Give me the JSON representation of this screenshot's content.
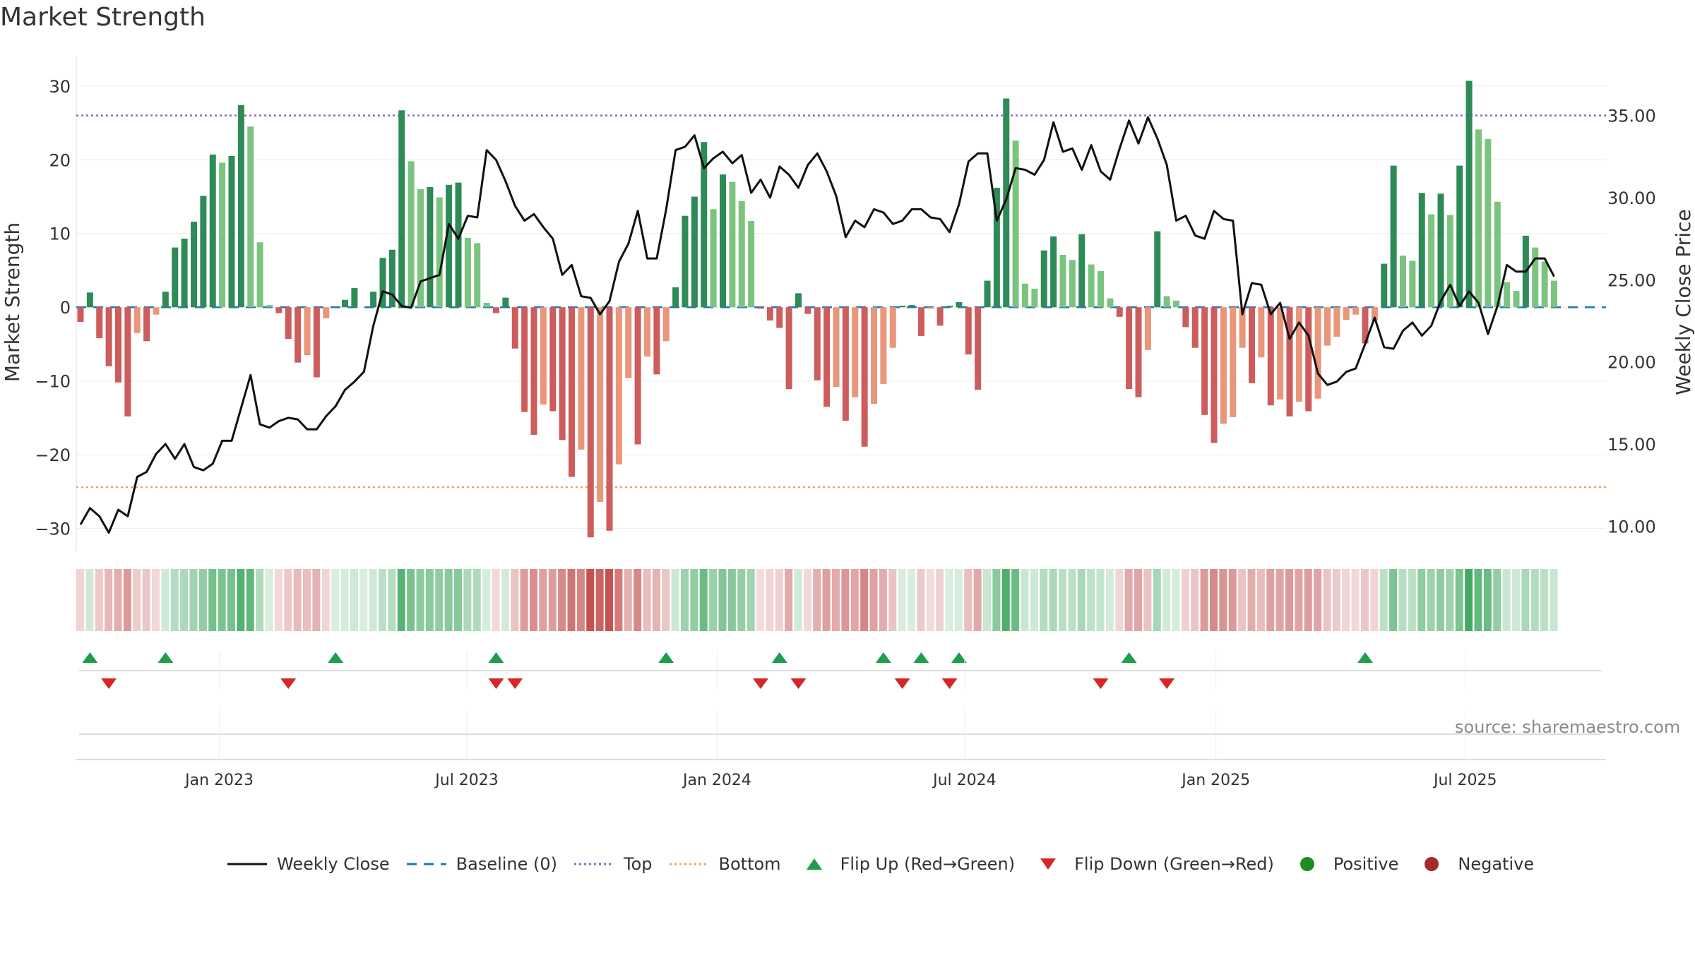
{
  "chart_data": {
    "type": "bar+line",
    "title": "Market Strength",
    "source": "source: sharemaestro.com",
    "left_axis": {
      "label": "Market Strength",
      "range": [
        -33,
        34
      ],
      "ticks": [
        30,
        20,
        10,
        0,
        -10,
        -20,
        -30
      ],
      "tick_labels": [
        "30",
        "20",
        "10",
        "0",
        "−10",
        "−20",
        "−30"
      ]
    },
    "right_axis": {
      "label": "Weekly Close Price",
      "range": [
        8.51,
        38.6
      ],
      "ticks": [
        35,
        30,
        25,
        20,
        15,
        10
      ],
      "tick_labels": [
        "35.00",
        "30.00",
        "25.00",
        "20.00",
        "15.00",
        "10.00"
      ]
    },
    "x_axis": {
      "tick_labels": [
        "Jan 2023",
        "Jul 2023",
        "Jan 2024",
        "Jul 2024",
        "Jan 2025",
        "Jul 2025"
      ],
      "tick_weeks": [
        14.7,
        40.9,
        67.4,
        93.6,
        120.2,
        146.6
      ]
    },
    "thresholds": {
      "top": 26,
      "bottom": -24.4,
      "baseline": 0
    },
    "strength": [
      -2,
      2,
      -4.2,
      -8,
      -10.2,
      -14.8,
      -3.5,
      -4.6,
      -1,
      2.1,
      8.1,
      9.3,
      11.6,
      15.1,
      20.7,
      19.6,
      20.5,
      27.4,
      24.5,
      8.8,
      0.3,
      -0.8,
      -4.3,
      -7.5,
      -6.5,
      -9.5,
      -1.5,
      0,
      1,
      2.6,
      0,
      2.1,
      6.7,
      7.8,
      26.7,
      19.8,
      16,
      16.3,
      14.9,
      16.6,
      16.9,
      9.4,
      8.7,
      0.6,
      -0.8,
      1.3,
      -5.6,
      -14.2,
      -17.3,
      -13.2,
      -14.1,
      -18,
      -23,
      -19.3,
      -31.2,
      -26.4,
      -30.3,
      -21.3,
      -9.6,
      -18.6,
      -6.7,
      -9.1,
      -4.6,
      2.7,
      12.4,
      15,
      22.4,
      13.3,
      18,
      17,
      14.4,
      11.7,
      -0.2,
      -1.8,
      -2.8,
      -11.1,
      1.9,
      -0.9,
      -9.9,
      -13.5,
      -10.8,
      -15.4,
      -12.2,
      -18.9,
      -13.1,
      -10.4,
      -5.5,
      0.2,
      0.3,
      -3.9,
      -0.2,
      -2.5,
      0.2,
      0.7,
      -6.4,
      -11.2,
      3.6,
      16.2,
      28.3,
      22.6,
      3.2,
      2.5,
      7.7,
      9.6,
      7.1,
      6.4,
      9.9,
      5.8,
      4.9,
      1.2,
      -1.3,
      -11.1,
      -12.2,
      -5.8,
      10.3,
      1.5,
      0.9,
      -2.7,
      -5.5,
      -14.6,
      -18.4,
      -15.8,
      -14.9,
      -5.5,
      -10.3,
      -6.8,
      -13.3,
      -12.5,
      -14.8,
      -12.8,
      -14.1,
      -12.4,
      -5.2,
      -4,
      -1.7,
      -1,
      -4.9,
      -1.8,
      5.9,
      19.2,
      7,
      6.3,
      15.5,
      12.6,
      15.4,
      12.5,
      19.2,
      30.7,
      24.1,
      22.8,
      14.3,
      3.4,
      2.2,
      9.7,
      8.1,
      6.2,
      3.6
    ],
    "close": [
      10.1,
      11.1,
      10.6,
      9.6,
      11.0,
      10.6,
      13.0,
      13.3,
      14.4,
      15.0,
      14.1,
      15.0,
      13.6,
      13.4,
      13.8,
      15.2,
      15.2,
      17.2,
      19.2,
      16.2,
      16.0,
      16.4,
      16.6,
      16.5,
      15.9,
      15.9,
      16.7,
      17.3,
      18.3,
      18.8,
      19.4,
      22.2,
      24.3,
      24.1,
      23.4,
      23.3,
      24.9,
      25.1,
      25.3,
      28.4,
      27.5,
      28.9,
      28.8,
      32.9,
      32.3,
      31.0,
      29.5,
      28.6,
      29.0,
      28.2,
      27.5,
      25.3,
      25.9,
      24.0,
      23.9,
      22.9,
      23.7,
      26.1,
      27.2,
      29.2,
      26.3,
      26.3,
      29.3,
      32.9,
      33.1,
      33.8,
      31.8,
      32.4,
      32.8,
      32.1,
      32.6,
      30.3,
      31.1,
      30.0,
      31.9,
      31.4,
      30.6,
      32.0,
      32.7,
      31.6,
      30.1,
      27.6,
      28.6,
      28.2,
      29.3,
      29.1,
      28.4,
      28.6,
      29.3,
      29.3,
      28.8,
      28.7,
      27.9,
      29.6,
      32.2,
      32.7,
      32.7,
      28.6,
      29.9,
      31.8,
      31.7,
      31.4,
      32.3,
      34.6,
      32.8,
      33.0,
      31.7,
      33.2,
      31.6,
      31.1,
      33.0,
      34.7,
      33.3,
      34.9,
      33.6,
      32.0,
      28.6,
      28.9,
      27.7,
      27.5,
      29.2,
      28.7,
      28.6,
      22.9,
      24.8,
      24.7,
      22.9,
      23.6,
      21.4,
      22.4,
      21.6,
      19.3,
      18.6,
      18.8,
      19.4,
      19.6,
      21.1,
      22.7,
      20.9,
      20.8,
      21.9,
      22.4,
      21.6,
      22.2,
      23.7,
      24.7,
      23.4,
      24.3,
      23.6,
      21.7,
      23.4,
      25.9,
      25.5,
      25.5,
      26.3,
      26.3,
      25.2
    ],
    "flips_up": [
      1,
      9,
      27,
      44,
      62,
      74,
      85,
      89,
      93,
      111,
      136
    ],
    "flips_down": [
      3,
      22,
      44,
      46,
      72,
      76,
      87,
      92,
      108,
      115
    ],
    "legend": [
      {
        "label": "Weekly Close",
        "kind": "line",
        "color": "#111111"
      },
      {
        "label": "Baseline (0)",
        "kind": "dash",
        "color": "#1f77b4"
      },
      {
        "label": "Top",
        "kind": "dot",
        "color": "#9467bd"
      },
      {
        "label": "Bottom",
        "kind": "dot",
        "color": "#f4a261"
      },
      {
        "label": "Flip Up (Red→Green)",
        "kind": "tri-up",
        "color": "#1e9e4a"
      },
      {
        "label": "Flip Down (Green→Red)",
        "kind": "tri-down",
        "color": "#d62728"
      },
      {
        "label": "Positive",
        "kind": "circle",
        "color": "#228b22"
      },
      {
        "label": "Negative",
        "kind": "circle",
        "color": "#a52a2a"
      }
    ],
    "colors": {
      "pos_strong": "#2e8b57",
      "pos_light": "#7bc47f",
      "neg_strong": "#cd5c5c",
      "neg_light": "#e9967a",
      "top_line": "#9467bd",
      "bottom_line": "#f4a261",
      "baseline": "#1f77b4",
      "close_line": "#111111"
    }
  }
}
